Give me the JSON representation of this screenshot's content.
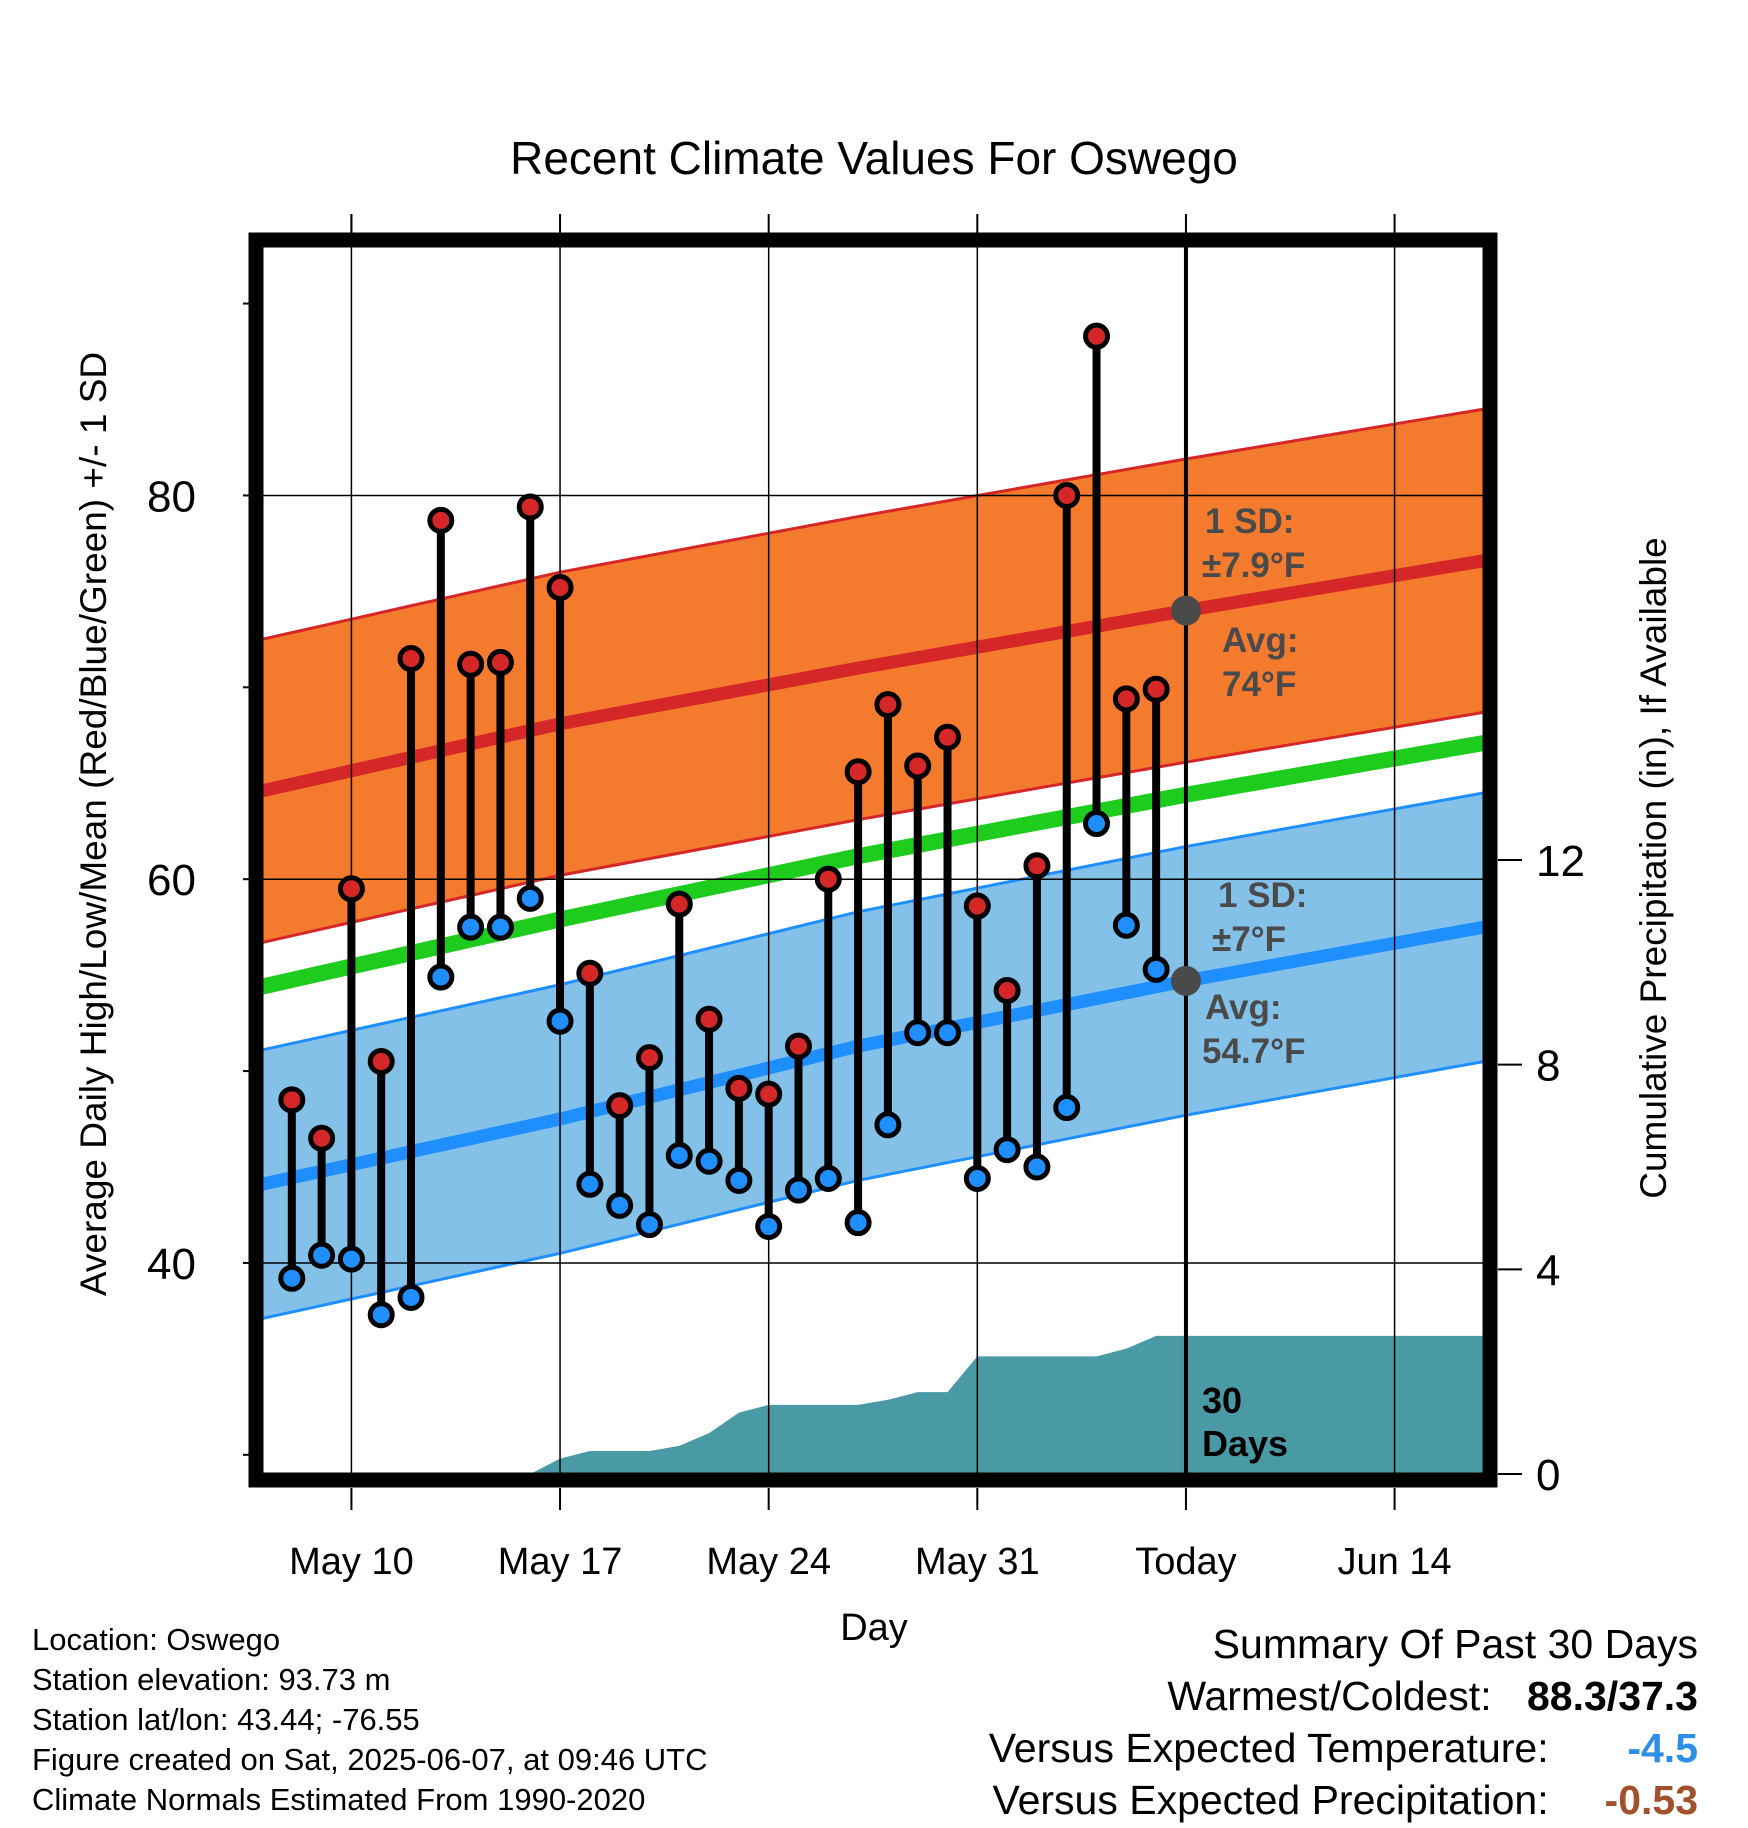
{
  "chart_data": {
    "type": "line",
    "title": "Recent Climate Values For Oswego",
    "xlabel": "Day",
    "ylabel": "Average Daily High/Low/Mean (Red/Blue/Green) +/- 1 SD",
    "y2label": "Cumulative Precipitation (in), If Available",
    "ylim": [
      29,
      93
    ],
    "y_ticks": [
      40,
      60,
      80
    ],
    "y2lim": [
      0,
      24
    ],
    "y2_ticks": [
      0,
      4,
      8,
      12
    ],
    "x_start": "2025-05-07",
    "x_end": "2025-06-17",
    "x_ticks": [
      {
        "date": "2025-05-10",
        "label": "May 10"
      },
      {
        "date": "2025-05-17",
        "label": "May 17"
      },
      {
        "date": "2025-05-24",
        "label": "May 24"
      },
      {
        "date": "2025-05-31",
        "label": "May 31"
      },
      {
        "date": "2025-06-07",
        "label": "Today"
      },
      {
        "date": "2025-06-14",
        "label": "Jun 14"
      }
    ],
    "today": "2025-06-07",
    "today_label": "30 Days",
    "grid": true,
    "normals": {
      "x": [
        "2025-05-07",
        "2025-05-17",
        "2025-05-27",
        "2025-06-07",
        "2025-06-17"
      ],
      "high_mean": [
        64.6,
        68.1,
        71.0,
        74.0,
        76.6
      ],
      "high_sd": 7.9,
      "low_mean": [
        44.1,
        47.5,
        51.3,
        54.7,
        57.5
      ],
      "low_sd": 7.0,
      "mean": [
        54.4,
        57.9,
        61.2,
        64.4,
        67.1
      ]
    },
    "high_annotation": {
      "sd_label": "1 SD:",
      "sd_value": "±7.9°F",
      "avg_label": "Avg:",
      "avg_value": "74°F"
    },
    "low_annotation": {
      "sd_label": "1 SD:",
      "sd_value": "±7°F",
      "avg_label": "Avg:",
      "avg_value": "54.7°F"
    },
    "series": [
      {
        "name": "High",
        "color": "#d62728",
        "x": [
          "2025-05-08",
          "2025-05-09",
          "2025-05-10",
          "2025-05-11",
          "2025-05-12",
          "2025-05-13",
          "2025-05-14",
          "2025-05-15",
          "2025-05-16",
          "2025-05-17",
          "2025-05-18",
          "2025-05-19",
          "2025-05-20",
          "2025-05-21",
          "2025-05-22",
          "2025-05-23",
          "2025-05-24",
          "2025-05-25",
          "2025-05-26",
          "2025-05-27",
          "2025-05-28",
          "2025-05-29",
          "2025-05-30",
          "2025-05-31",
          "2025-06-01",
          "2025-06-02",
          "2025-06-03",
          "2025-06-04",
          "2025-06-05",
          "2025-06-06"
        ],
        "values": [
          48.5,
          46.5,
          59.5,
          50.5,
          71.5,
          78.7,
          71.2,
          71.3,
          79.4,
          75.2,
          55.1,
          48.2,
          50.7,
          58.7,
          52.7,
          49.1,
          48.8,
          51.3,
          60.0,
          65.6,
          69.1,
          65.9,
          67.4,
          58.6,
          54.2,
          60.7,
          80.0,
          88.3,
          69.4,
          69.9
        ]
      },
      {
        "name": "Low",
        "color": "#1f8fff",
        "x": [
          "2025-05-08",
          "2025-05-09",
          "2025-05-10",
          "2025-05-11",
          "2025-05-12",
          "2025-05-13",
          "2025-05-14",
          "2025-05-15",
          "2025-05-16",
          "2025-05-17",
          "2025-05-18",
          "2025-05-19",
          "2025-05-20",
          "2025-05-21",
          "2025-05-22",
          "2025-05-23",
          "2025-05-24",
          "2025-05-25",
          "2025-05-26",
          "2025-05-27",
          "2025-05-28",
          "2025-05-29",
          "2025-05-30",
          "2025-05-31",
          "2025-06-01",
          "2025-06-02",
          "2025-06-03",
          "2025-06-04",
          "2025-06-05",
          "2025-06-06"
        ],
        "values": [
          39.2,
          40.4,
          40.2,
          37.3,
          38.2,
          54.9,
          57.5,
          57.5,
          59.0,
          52.6,
          44.1,
          43.0,
          42.0,
          45.6,
          45.3,
          44.3,
          41.9,
          43.8,
          44.4,
          42.1,
          47.2,
          52.0,
          52.0,
          44.4,
          45.9,
          45.0,
          48.1,
          62.9,
          57.6,
          55.3
        ]
      },
      {
        "name": "Cumulative Precipitation",
        "color": "#4a9aa5",
        "x": [
          "2025-05-07",
          "2025-05-16",
          "2025-05-17",
          "2025-05-18",
          "2025-05-19",
          "2025-05-20",
          "2025-05-21",
          "2025-05-22",
          "2025-05-23",
          "2025-05-24",
          "2025-05-25",
          "2025-05-26",
          "2025-05-27",
          "2025-05-28",
          "2025-05-29",
          "2025-05-30",
          "2025-05-31",
          "2025-06-01",
          "2025-06-02",
          "2025-06-03",
          "2025-06-04",
          "2025-06-05",
          "2025-06-06",
          "2025-06-07",
          "2025-06-17"
        ],
        "values": [
          0,
          0,
          0.3,
          0.45,
          0.45,
          0.45,
          0.55,
          0.8,
          1.2,
          1.35,
          1.35,
          1.35,
          1.35,
          1.45,
          1.6,
          1.6,
          2.3,
          2.3,
          2.3,
          2.3,
          2.3,
          2.45,
          2.7,
          2.7,
          2.7
        ]
      }
    ]
  },
  "station_info": {
    "location": "Location: Oswego",
    "elevation": "Station elevation: 93.73 m",
    "latlon": "Station lat/lon: 43.44; -76.55",
    "created": "Figure created on Sat, 2025-06-07, at 09:46 UTC",
    "normals_period": "Climate Normals Estimated From 1990-2020"
  },
  "summary": {
    "heading": "Summary Of Past 30 Days",
    "warmest_label": "Warmest/Coldest:",
    "warmest_value": "88.3/37.3",
    "temp_label": "Versus Expected Temperature:",
    "temp_value": "-4.5",
    "temp_color": "#2b8fe8",
    "precip_label": "Versus Expected Precipitation:",
    "precip_value": "-0.53",
    "precip_color": "#a0522d"
  },
  "colors": {
    "high_band": "#f47a2e",
    "high_line": "#d62728",
    "low_band": "#84c1e8",
    "low_line": "#1f8fff",
    "mean_line": "#1ecc1e",
    "precip_fill": "#4a9aa5",
    "annotation_text": "#4a4a4a"
  }
}
